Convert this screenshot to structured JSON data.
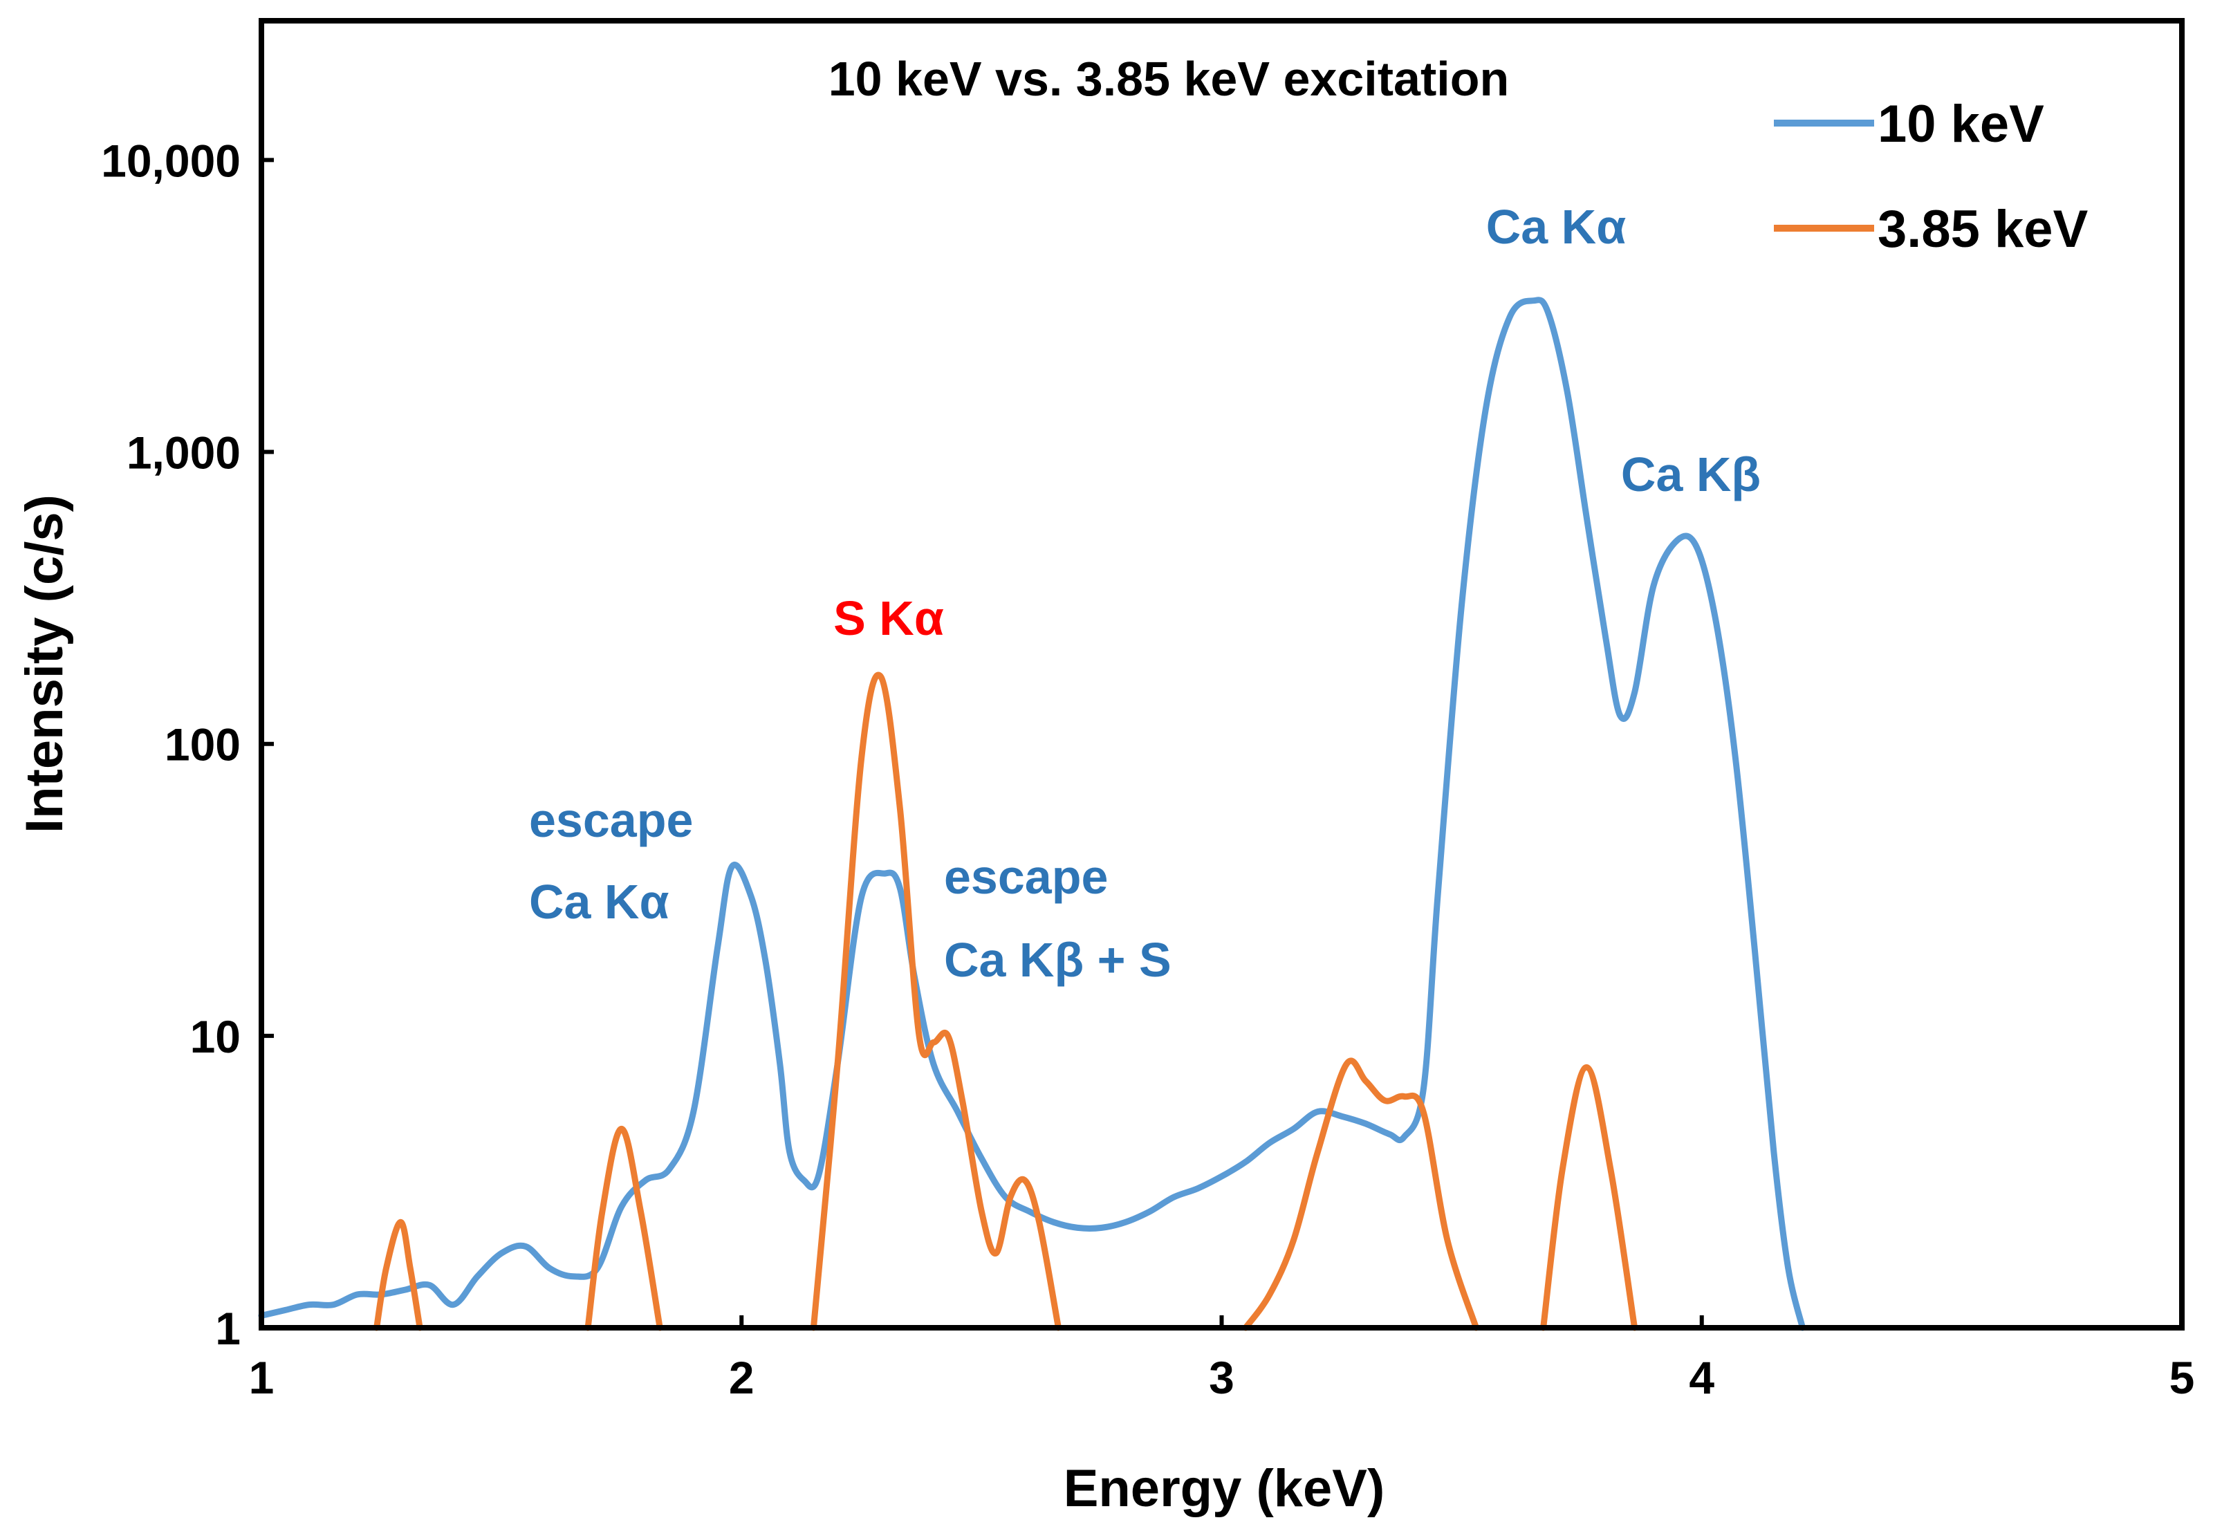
{
  "chart_data": {
    "type": "line",
    "title": "10 keV vs. 3.85 keV excitation",
    "xlabel": "Energy (keV)",
    "ylabel": "Intensity (c/s)",
    "xlim": [
      1,
      5
    ],
    "ylim": [
      1,
      30000
    ],
    "yscale": "log",
    "xticks": [
      1,
      2,
      3,
      4,
      5
    ],
    "xtick_labels": [
      "1",
      "2",
      "3",
      "4",
      "5"
    ],
    "yticks": [
      1,
      10,
      100,
      1000,
      10000
    ],
    "ytick_labels": [
      "1",
      "10",
      "100",
      "1,000",
      "10,000"
    ],
    "grid": false,
    "legend_position": "top-right",
    "series": [
      {
        "name": "10 keV",
        "color": "#5b9bd5",
        "x": [
          1.0,
          1.05,
          1.1,
          1.15,
          1.2,
          1.25,
          1.3,
          1.35,
          1.4,
          1.45,
          1.5,
          1.55,
          1.6,
          1.65,
          1.7,
          1.75,
          1.8,
          1.85,
          1.9,
          1.95,
          1.98,
          2.02,
          2.05,
          2.08,
          2.1,
          2.13,
          2.16,
          2.2,
          2.25,
          2.3,
          2.33,
          2.36,
          2.4,
          2.45,
          2.5,
          2.55,
          2.6,
          2.65,
          2.7,
          2.75,
          2.8,
          2.85,
          2.9,
          2.95,
          3.0,
          3.05,
          3.1,
          3.15,
          3.2,
          3.25,
          3.3,
          3.35,
          3.38,
          3.42,
          3.45,
          3.5,
          3.55,
          3.6,
          3.65,
          3.68,
          3.72,
          3.76,
          3.8,
          3.83,
          3.86,
          3.9,
          3.95,
          3.99,
          4.03,
          4.07,
          4.11,
          4.15,
          4.18,
          4.21
        ],
        "y": [
          1.1,
          1.15,
          1.2,
          1.2,
          1.3,
          1.3,
          1.35,
          1.4,
          1.2,
          1.5,
          1.8,
          1.9,
          1.6,
          1.5,
          1.6,
          2.6,
          3.2,
          3.5,
          5.5,
          20,
          38,
          30,
          18,
          8,
          4,
          3.2,
          3.3,
          8,
          30,
          36,
          32,
          16,
          8,
          5.5,
          3.8,
          2.8,
          2.5,
          2.3,
          2.2,
          2.2,
          2.3,
          2.5,
          2.8,
          3.0,
          3.3,
          3.7,
          4.3,
          4.8,
          5.5,
          5.3,
          5.0,
          4.6,
          4.5,
          6.5,
          30,
          300,
          1400,
          2900,
          3300,
          3000,
          1600,
          600,
          230,
          125,
          150,
          350,
          500,
          470,
          260,
          90,
          20,
          4,
          1.6,
          1
        ]
      },
      {
        "name": "3.85 keV",
        "color": "#ed7d31",
        "x": [
          1.24,
          1.26,
          1.29,
          1.31,
          1.33,
          1.68,
          1.71,
          1.75,
          1.79,
          1.83,
          2.15,
          2.2,
          2.25,
          2.29,
          2.33,
          2.37,
          2.4,
          2.43,
          2.46,
          2.5,
          2.53,
          2.56,
          2.59,
          2.62,
          2.66,
          3.05,
          3.1,
          3.15,
          3.2,
          3.26,
          3.3,
          3.34,
          3.38,
          3.42,
          3.47,
          3.53,
          3.67,
          3.71,
          3.76,
          3.81,
          3.86
        ],
        "y": [
          1,
          1.6,
          2.3,
          1.6,
          1,
          1,
          2.5,
          4.8,
          2.5,
          1,
          1,
          8,
          90,
          170,
          60,
          10,
          9.5,
          10,
          6,
          2.5,
          1.8,
          2.8,
          3.2,
          2.3,
          1,
          1,
          1.3,
          2.0,
          4.0,
          8.0,
          7.0,
          6.0,
          6.2,
          5.5,
          2.0,
          1,
          1,
          3.5,
          7.8,
          3.5,
          1
        ]
      }
    ],
    "annotations": [
      {
        "text": "S Kα",
        "color": "#ff0000"
      },
      {
        "text": "escape",
        "color": "#2e75b6"
      },
      {
        "text": "Ca Kα",
        "color": "#2e75b6"
      },
      {
        "text": "escape",
        "color": "#2e75b6"
      },
      {
        "text": "Ca Kβ + S",
        "color": "#2e75b6"
      },
      {
        "text": "Ca Kα",
        "color": "#2e75b6"
      },
      {
        "text": "Ca Kβ",
        "color": "#2e75b6"
      }
    ]
  }
}
